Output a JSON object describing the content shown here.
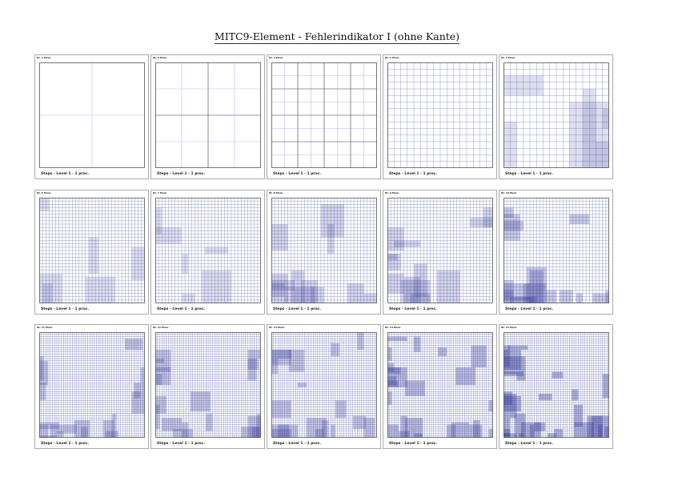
{
  "title": "MITC9-Element - Fehlerindikator I (ohne Kante)",
  "colors": {
    "mesh": "#3a3f9a",
    "dashed": "#8a8fe0",
    "frame": "#555555"
  },
  "panels": [
    {
      "top_label": "Nr. 1 Elem.",
      "bottom_label": "Steps - Level 1 - 1 proc.",
      "mesh_divisions": 2,
      "refinement": 0
    },
    {
      "top_label": "Nr. 2 Elem.",
      "bottom_label": "Steps - Level 1 - 1 proc.",
      "mesh_divisions": 4,
      "refinement": 0
    },
    {
      "top_label": "Nr. 3 Elem.",
      "bottom_label": "Steps - Level 1 - 1 proc.",
      "mesh_divisions": 8,
      "refinement": 0
    },
    {
      "top_label": "Nr. 4 Elem.",
      "bottom_label": "Steps - Level 1 - 1 proc.",
      "mesh_divisions": 16,
      "refinement": 0
    },
    {
      "top_label": "Nr. 5 Elem.",
      "bottom_label": "Steps - Level 1 - 1 proc.",
      "mesh_divisions": 16,
      "refinement": 1
    },
    {
      "top_label": "Nr. 6 Elem.",
      "bottom_label": "Steps - Level 1 - 1 proc.",
      "mesh_divisions": 32,
      "refinement": 1
    },
    {
      "top_label": "Nr. 7 Elem.",
      "bottom_label": "Steps - Level 1 - 1 proc.",
      "mesh_divisions": 32,
      "refinement": 1
    },
    {
      "top_label": "Nr. 8 Elem.",
      "bottom_label": "Steps - Level 1 - 1 proc.",
      "mesh_divisions": 32,
      "refinement": 2
    },
    {
      "top_label": "Nr. 9 Elem.",
      "bottom_label": "Steps - Level 1 - 1 proc.",
      "mesh_divisions": 32,
      "refinement": 2
    },
    {
      "top_label": "Nr. 10 Elem.",
      "bottom_label": "Steps - Level 1 - 1 proc.",
      "mesh_divisions": 32,
      "refinement": 3
    },
    {
      "top_label": "Nr. 11 Elem.",
      "bottom_label": "Steps - Level 1 - 1 proc.",
      "mesh_divisions": 48,
      "refinement": 3
    },
    {
      "top_label": "Nr. 12 Elem.",
      "bottom_label": "Steps - Level 1 - 1 proc.",
      "mesh_divisions": 48,
      "refinement": 3
    },
    {
      "top_label": "Nr. 13 Elem.",
      "bottom_label": "Steps - Level 1 - 1 proc.",
      "mesh_divisions": 48,
      "refinement": 3
    },
    {
      "top_label": "Nr. 14 Elem.",
      "bottom_label": "Steps - Level 1 - 1 proc.",
      "mesh_divisions": 48,
      "refinement": 4
    },
    {
      "top_label": "Nr. 15 Elem.",
      "bottom_label": "Steps - Level 1 - 1 proc.",
      "mesh_divisions": 48,
      "refinement": 5
    }
  ]
}
